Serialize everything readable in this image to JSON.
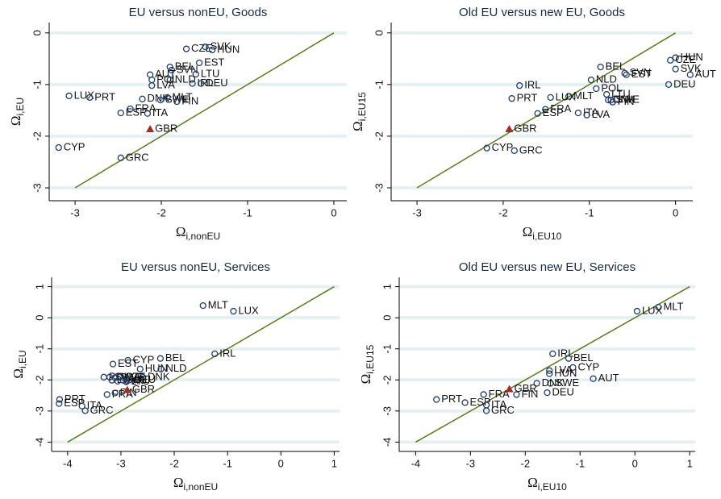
{
  "chart_data": [
    {
      "type": "scatter",
      "title": "EU versus nonEU, Goods",
      "xlabel": "Ω",
      "xlabel_sub": "i,nonEU",
      "ylabel": "Ω",
      "ylabel_sub": "i,EU",
      "xlim": [
        -3.3,
        0.15
      ],
      "ylim": [
        -3.25,
        0.2
      ],
      "xticks": [
        -3,
        -2,
        -1,
        0
      ],
      "yticks": [
        -3,
        -2,
        -1,
        0
      ],
      "grid": true,
      "reference_line": [
        -3,
        0
      ],
      "line_color": "#5a7d1a",
      "series": [
        {
          "color": "#1f3d6e",
          "marker": "circle",
          "labels": [
            "CZE",
            "SVK",
            "HUN",
            "EST",
            "BEL",
            "SVN",
            "AUT",
            "LTU",
            "POL",
            "NLD",
            "IRL",
            "DEU",
            "LVA",
            "LUX",
            "PRT",
            "DNK",
            "SWE",
            "MLT",
            "FIN",
            "FRA",
            "ESP",
            "ITA",
            "CYP",
            "GRC"
          ],
          "x": [
            -1.71,
            -1.49,
            -1.41,
            -1.56,
            -1.9,
            -1.88,
            -2.13,
            -1.6,
            -2.11,
            -1.9,
            -1.64,
            -1.54,
            -2.11,
            -3.07,
            -2.83,
            -2.22,
            -2.01,
            -1.93,
            -1.82,
            -2.36,
            -2.47,
            -2.16,
            -3.19,
            -2.47
          ],
          "values": [
            -0.31,
            -0.27,
            -0.33,
            -0.58,
            -0.66,
            -0.72,
            -0.81,
            -0.8,
            -0.91,
            -0.91,
            -0.98,
            -0.98,
            -1.02,
            -1.22,
            -1.25,
            -1.28,
            -1.3,
            -1.25,
            -1.33,
            -1.47,
            -1.55,
            -1.56,
            -2.22,
            -2.42
          ]
        },
        {
          "color": "#a52a2a",
          "marker": "triangle",
          "labels": [
            "GBR"
          ],
          "x": [
            -2.13
          ],
          "values": [
            -1.86
          ]
        }
      ]
    },
    {
      "type": "scatter",
      "title": "Old EU versus new EU, Goods",
      "xlabel": "Ω",
      "xlabel_sub": "i,EU10",
      "ylabel": "Ω",
      "ylabel_sub": "i,EU15",
      "xlim": [
        -3.3,
        0.2
      ],
      "ylim": [
        -3.25,
        0.2
      ],
      "xticks": [
        -3,
        -2,
        -1,
        0
      ],
      "yticks": [
        -3,
        -2,
        -1,
        0
      ],
      "grid": true,
      "reference_line": [
        -3,
        0
      ],
      "line_color": "#5a7d1a",
      "series": [
        {
          "color": "#1f3d6e",
          "marker": "circle",
          "labels": [
            "HUN",
            "CZE",
            "SVK",
            "AUT",
            "DEU",
            "BEL",
            "SVN",
            "EST",
            "NLD",
            "POL",
            "IRL",
            "LTU",
            "MLT",
            "DNK",
            "SWE",
            "FIN",
            "LUX",
            "PRT",
            "FRA",
            "ESP",
            "ITA",
            "LVA",
            "CYP",
            "GRC"
          ],
          "x": [
            0.0,
            -0.06,
            0.0,
            0.17,
            -0.08,
            -0.87,
            -0.59,
            -0.57,
            -0.98,
            -0.92,
            -1.81,
            -0.8,
            -1.24,
            -0.78,
            -0.75,
            -0.73,
            -1.45,
            -1.9,
            -1.51,
            -1.6,
            -1.13,
            -1.03,
            -2.19,
            -1.87
          ],
          "values": [
            -0.48,
            -0.53,
            -0.7,
            -0.81,
            -1.0,
            -0.66,
            -0.78,
            -0.81,
            -0.91,
            -1.08,
            -1.02,
            -1.19,
            -1.23,
            -1.3,
            -1.3,
            -1.34,
            -1.25,
            -1.27,
            -1.48,
            -1.56,
            -1.55,
            -1.59,
            -2.23,
            -2.28
          ]
        },
        {
          "color": "#a52a2a",
          "marker": "triangle",
          "labels": [
            "GBR"
          ],
          "x": [
            -1.93
          ],
          "values": [
            -1.86
          ]
        }
      ]
    },
    {
      "type": "scatter",
      "title": "EU versus nonEU, Services",
      "xlabel": "Ω",
      "xlabel_sub": "i,nonEU",
      "ylabel": "Ω",
      "ylabel_sub": "i,EU",
      "xlim": [
        -4.3,
        1.1
      ],
      "ylim": [
        -4.3,
        1.3
      ],
      "xticks": [
        -4,
        -3,
        -2,
        -1,
        0,
        1
      ],
      "yticks": [
        -4,
        -3,
        -2,
        -1,
        0,
        1
      ],
      "grid": true,
      "reference_line": [
        -4,
        1
      ],
      "line_color": "#5a7d1a",
      "series": [
        {
          "color": "#1f3d6e",
          "marker": "circle",
          "labels": [
            "MLT",
            "LUX",
            "IRL",
            "BEL",
            "CYP",
            "EST",
            "HUN",
            "NLD",
            "DNK",
            "POL",
            "SVK",
            "SWE",
            "CZE",
            "LVA",
            "SVN",
            "AUT",
            "LTU",
            "DEU",
            "FRA",
            "FIN",
            "PRT",
            "ESP",
            "ITA",
            "GRC"
          ],
          "x": [
            -1.46,
            -0.89,
            -1.24,
            -2.26,
            -2.87,
            -3.15,
            -2.64,
            -2.25,
            -2.59,
            -3.32,
            -3.21,
            -3.11,
            -3.02,
            -3.17,
            -3.06,
            -2.96,
            -2.9,
            -2.85,
            -3.26,
            -3.11,
            -4.15,
            -4.16,
            -3.73,
            -3.67
          ],
          "values": [
            0.39,
            0.21,
            -1.16,
            -1.31,
            -1.37,
            -1.49,
            -1.65,
            -1.65,
            -1.91,
            -1.91,
            -1.91,
            -1.93,
            -1.91,
            -2.01,
            -2.04,
            -2.01,
            -2.06,
            -2.01,
            -2.47,
            -2.42,
            -2.63,
            -2.76,
            -2.84,
            -2.99
          ]
        },
        {
          "color": "#a52a2a",
          "marker": "triangle",
          "labels": [
            "GBR"
          ],
          "x": [
            -2.88
          ],
          "values": [
            -2.32
          ]
        }
      ]
    },
    {
      "type": "scatter",
      "title": "Old EU versus new EU, Services",
      "xlabel": "Ω",
      "xlabel_sub": "i,EU10",
      "ylabel": "Ω",
      "ylabel_sub": "i,EU15",
      "xlim": [
        -4.3,
        1.1
      ],
      "ylim": [
        -4.3,
        1.3
      ],
      "xticks": [
        -4,
        -3,
        -2,
        -1,
        0,
        1
      ],
      "yticks": [
        -4,
        -3,
        -2,
        -1,
        0,
        1
      ],
      "grid": true,
      "reference_line": [
        -4,
        1
      ],
      "line_color": "#5a7d1a",
      "series": [
        {
          "color": "#1f3d6e",
          "marker": "circle",
          "labels": [
            "MLT",
            "LUX",
            "IRL",
            "BEL",
            "CYP",
            "LVA",
            "HUN",
            "AUT",
            "SWE",
            "DNK",
            "DEU",
            "FIN",
            "FRA",
            "ESP",
            "ITA",
            "GRC",
            "PRT"
          ],
          "x": [
            0.43,
            0.04,
            -1.5,
            -1.21,
            -1.13,
            -1.56,
            -1.56,
            -0.76,
            -1.54,
            -1.79,
            -1.6,
            -2.16,
            -2.76,
            -3.1,
            -2.71,
            -2.71,
            -3.62
          ],
          "values": [
            0.34,
            0.21,
            -1.16,
            -1.31,
            -1.6,
            -1.7,
            -1.8,
            -1.96,
            -2.11,
            -2.11,
            -2.41,
            -2.47,
            -2.47,
            -2.73,
            -2.81,
            -2.99,
            -2.63
          ]
        },
        {
          "color": "#a52a2a",
          "marker": "triangle",
          "labels": [
            "GBR"
          ],
          "x": [
            -2.29
          ],
          "values": [
            -2.29
          ]
        }
      ]
    }
  ]
}
